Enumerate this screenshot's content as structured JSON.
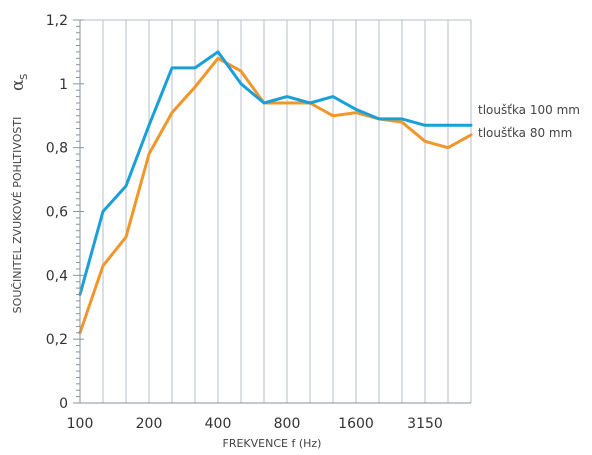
{
  "chart_data": {
    "type": "line",
    "xlabel": "FREKVENCE f (Hz)",
    "ylabel": "SOUČINITEL ZVUKOVÉ POHLTIVOSTI",
    "ylabel_symbol": "α",
    "ylabel_symbol_sub": "S",
    "x": [
      100,
      125,
      160,
      200,
      250,
      315,
      400,
      500,
      630,
      800,
      1000,
      1250,
      1600,
      2000,
      2500,
      3150,
      4000,
      5000
    ],
    "x_tick_labels": [
      "100",
      "200",
      "400",
      "800",
      "1600",
      "3150"
    ],
    "y_tick_labels": [
      "0",
      "0,2",
      "0,4",
      "0,6",
      "0,8",
      "1",
      "1,2"
    ],
    "ylim": [
      0,
      1.2
    ],
    "grid": true,
    "legend_placement": "right",
    "colors": {
      "blue": "#1a9fd9",
      "orange": "#f0962a",
      "grid": "#b7bec6"
    },
    "series": [
      {
        "name": "tloušťka 100 mm",
        "color": "#1a9fd9",
        "values": [
          0.34,
          0.6,
          0.68,
          0.87,
          1.05,
          1.05,
          1.1,
          1.0,
          0.94,
          0.96,
          0.94,
          0.96,
          0.92,
          0.89,
          0.89,
          0.87,
          0.87,
          0.87
        ]
      },
      {
        "name": "tloušťka 80 mm",
        "color": "#f0962a",
        "values": [
          0.22,
          0.43,
          0.52,
          0.78,
          0.91,
          0.99,
          1.08,
          1.04,
          0.94,
          0.94,
          0.94,
          0.9,
          0.91,
          0.89,
          0.88,
          0.82,
          0.8,
          0.84
        ]
      }
    ]
  }
}
